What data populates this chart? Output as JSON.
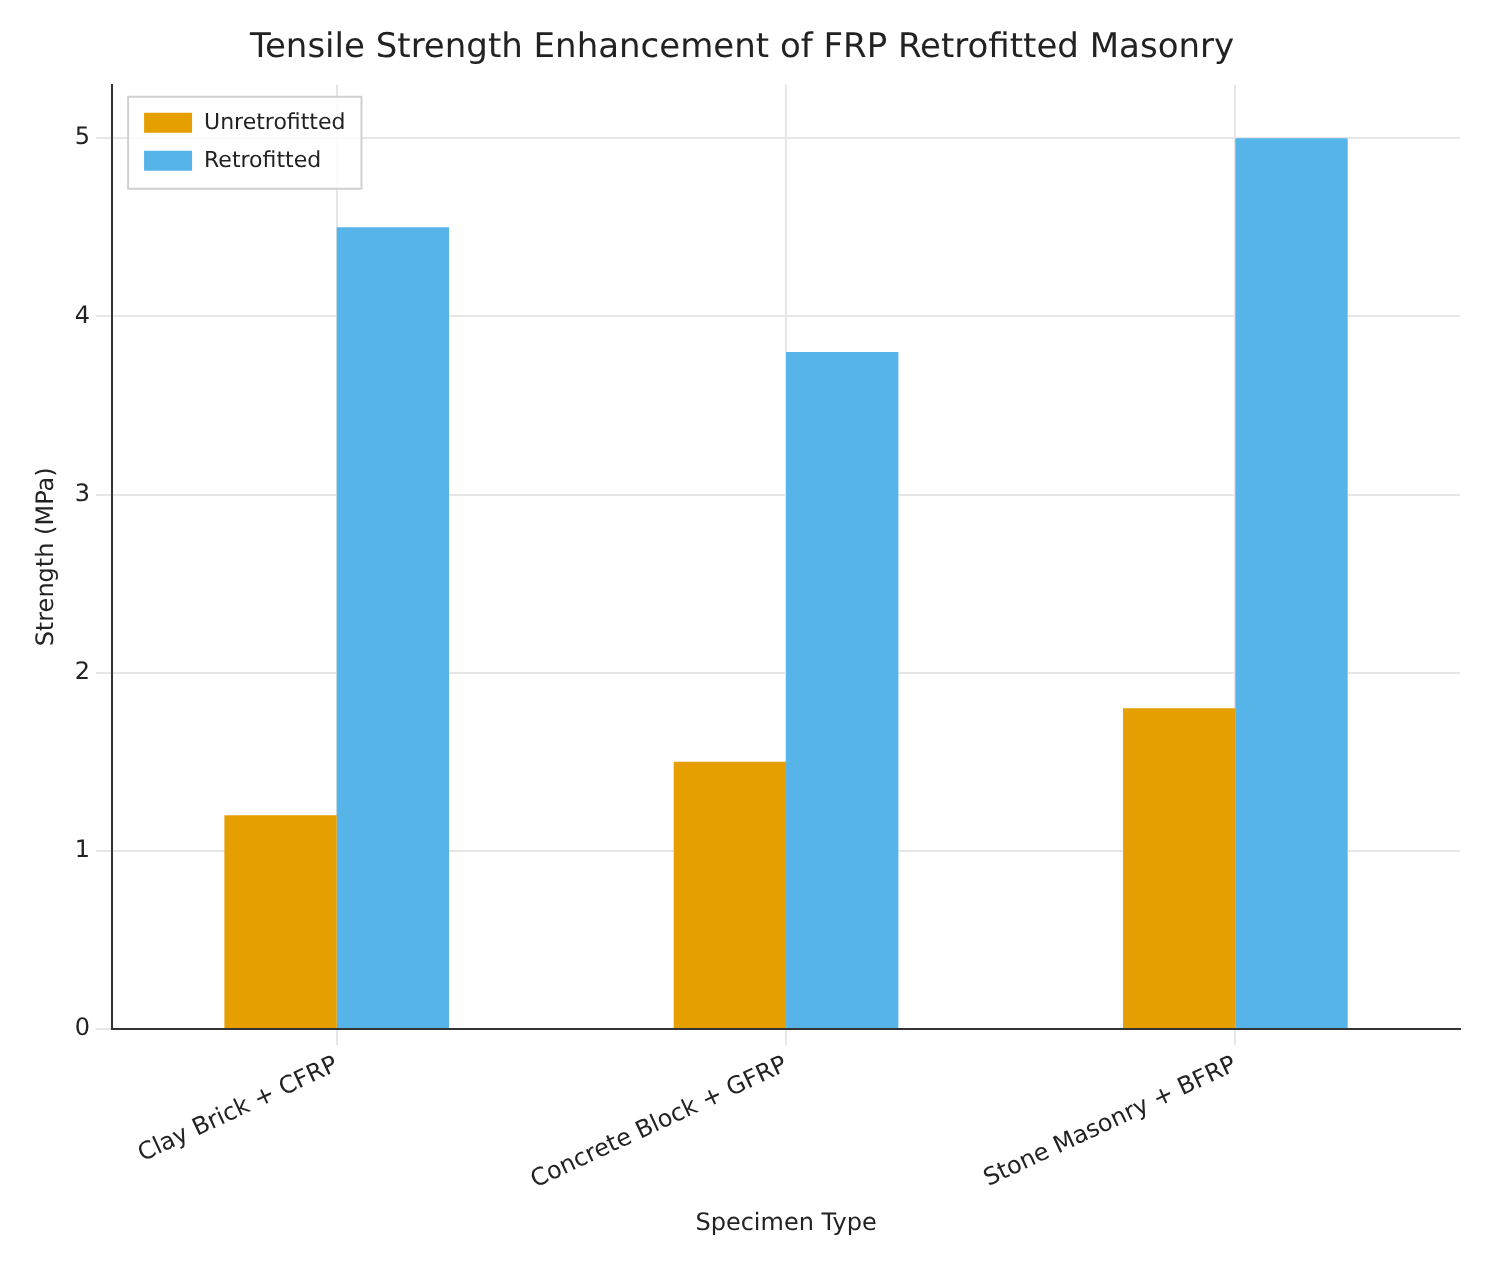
{
  "chart_data": {
    "type": "bar",
    "title": "Tensile Strength Enhancement of FRP Retrofitted Masonry",
    "xlabel": "Specimen Type",
    "ylabel": "Strength (MPa)",
    "categories": [
      "Clay Brick + CFRP",
      "Concrete Block + GFRP",
      "Stone Masonry + BFRP"
    ],
    "series": [
      {
        "name": "Unretrofitted",
        "color": "#e69f00",
        "values": [
          1.2,
          1.5,
          1.8
        ]
      },
      {
        "name": "Retrofitted",
        "color": "#56b4e9",
        "values": [
          4.5,
          3.8,
          5.0
        ]
      }
    ],
    "ylim": [
      0,
      5.3
    ],
    "yticks": [
      0,
      1,
      2,
      3,
      4,
      5
    ],
    "grid": true,
    "legend": "top left"
  }
}
